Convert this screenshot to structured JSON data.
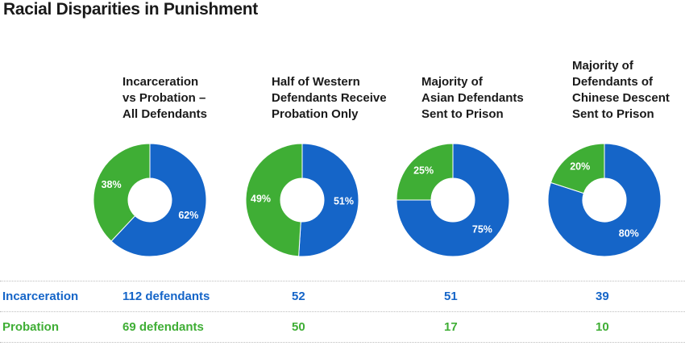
{
  "title": "Racial Disparities in Punishment",
  "colors": {
    "incarceration": "#1565c8",
    "probation": "#3fae35"
  },
  "chart_data": [
    {
      "type": "pie",
      "title_lines": [
        "Incarceration",
        "vs Probation –",
        "All Defendants"
      ],
      "slices": [
        {
          "label": "Incarceration",
          "value": 62,
          "display": "62%"
        },
        {
          "label": "Probation",
          "value": 38,
          "display": "38%"
        }
      ]
    },
    {
      "type": "pie",
      "title_lines": [
        "Half of Western",
        "Defendants Receive",
        "Probation Only"
      ],
      "slices": [
        {
          "label": "Incarceration",
          "value": 51,
          "display": "51%"
        },
        {
          "label": "Probation",
          "value": 49,
          "display": "49%"
        }
      ]
    },
    {
      "type": "pie",
      "title_lines": [
        "Majority of",
        "Asian Defendants",
        "Sent to Prison"
      ],
      "slices": [
        {
          "label": "Incarceration",
          "value": 75,
          "display": "75%"
        },
        {
          "label": "Probation",
          "value": 25,
          "display": "25%"
        }
      ]
    },
    {
      "type": "pie",
      "title_lines": [
        "Majority of",
        "Defendants of",
        "Chinese Descent",
        "Sent to Prison"
      ],
      "slices": [
        {
          "label": "Incarceration",
          "value": 80,
          "display": "80%"
        },
        {
          "label": "Probation",
          "value": 20,
          "display": "20%"
        }
      ]
    }
  ],
  "table": {
    "rows": [
      {
        "label": "Incarceration",
        "values": [
          "112 defendants",
          "52",
          "51",
          "39"
        ]
      },
      {
        "label": "Probation",
        "values": [
          "69 defendants",
          "50",
          "17",
          "10"
        ]
      }
    ]
  }
}
